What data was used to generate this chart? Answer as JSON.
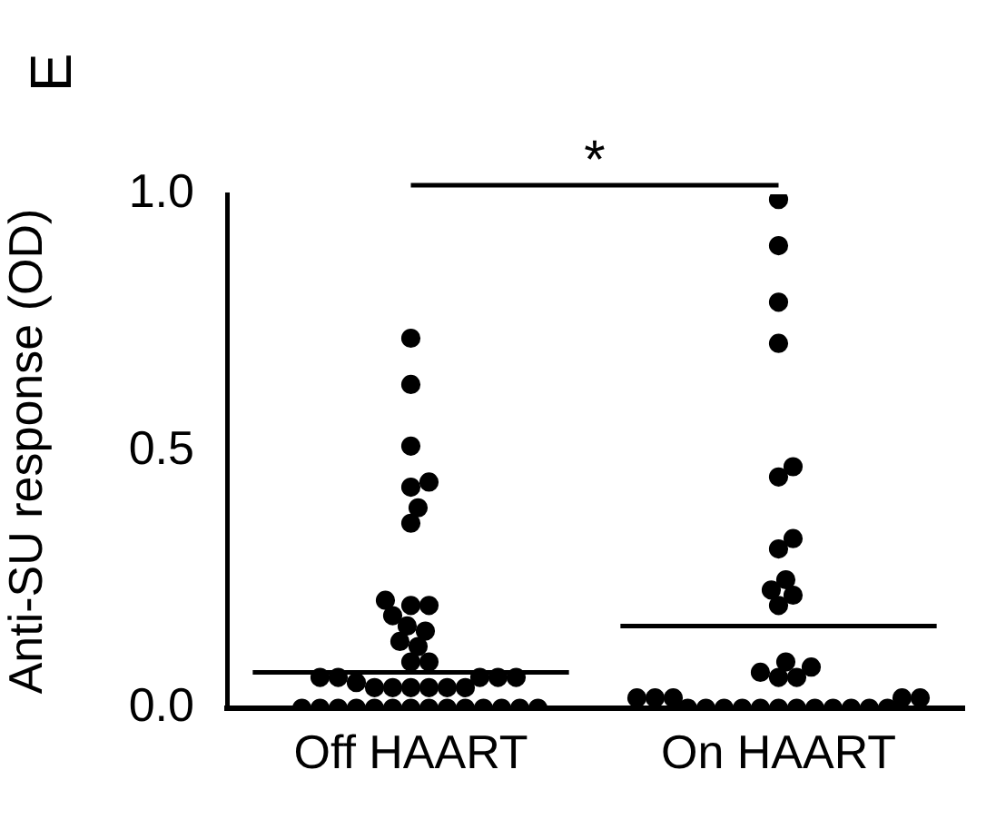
{
  "chart_data": {
    "type": "box",
    "categories": [
      "Off HAART",
      "On HAART"
    ],
    "ylabel": "Anti-SU response (OD)",
    "ylim": [
      0,
      1.0
    ],
    "yticks": [
      {
        "value": 0,
        "label": "0.0"
      },
      {
        "value": 0.5,
        "label": "0.5"
      },
      {
        "value": 1,
        "label": "1.0"
      }
    ],
    "boxes": [
      {
        "low": 0.07,
        "q1": 0.07,
        "median": 0.07,
        "q3": 0.07,
        "high": 0.07
      },
      {
        "low": 0.16,
        "q1": 0.16,
        "median": 0.16,
        "q3": 0.16,
        "high": 0.16
      }
    ],
    "series": [
      {
        "type": "scatter",
        "color": "#000000",
        "x": [
          "Off HAART",
          "Off HAART",
          "Off HAART",
          "Off HAART",
          "Off HAART",
          "Off HAART",
          "Off HAART",
          "Off HAART",
          "Off HAART",
          "Off HAART",
          "Off HAART",
          "Off HAART",
          "Off HAART",
          "Off HAART",
          "Off HAART",
          "Off HAART",
          "Off HAART",
          "Off HAART",
          "Off HAART",
          "Off HAART",
          "Off HAART",
          "Off HAART",
          "Off HAART",
          "Off HAART",
          "Off HAART",
          "Off HAART",
          "Off HAART",
          "Off HAART",
          "Off HAART",
          "Off HAART",
          "Off HAART",
          "Off HAART",
          "Off HAART",
          "Off HAART",
          "Off HAART",
          "Off HAART",
          "Off HAART",
          "Off HAART",
          "Off HAART",
          "Off HAART",
          "Off HAART",
          "Off HAART",
          "Off HAART"
        ],
        "values": [
          0.72,
          0.63,
          0.51,
          0.44,
          0.43,
          0.39,
          0.36,
          0.21,
          0.2,
          0.2,
          0.18,
          0.16,
          0.15,
          0.13,
          0.12,
          0.09,
          0.09,
          0.06,
          0.06,
          0.06,
          0.06,
          0.06,
          0.05,
          0.04,
          0.04,
          0.04,
          0.04,
          0.04,
          0.04,
          0,
          0,
          0,
          0,
          0,
          0,
          0,
          0,
          0,
          0,
          0,
          0,
          0,
          0
        ]
      },
      {
        "type": "scatter",
        "color": "#000000",
        "x": [
          "On HAART",
          "On HAART",
          "On HAART",
          "On HAART",
          "On HAART",
          "On HAART",
          "On HAART",
          "On HAART",
          "On HAART",
          "On HAART",
          "On HAART",
          "On HAART",
          "On HAART",
          "On HAART",
          "On HAART",
          "On HAART",
          "On HAART",
          "On HAART",
          "On HAART",
          "On HAART",
          "On HAART",
          "On HAART",
          "On HAART",
          "On HAART",
          "On HAART",
          "On HAART",
          "On HAART",
          "On HAART",
          "On HAART",
          "On HAART",
          "On HAART",
          "On HAART",
          "On HAART",
          "On HAART"
        ],
        "values": [
          0.99,
          0.9,
          0.79,
          0.71,
          0.47,
          0.45,
          0.33,
          0.31,
          0.25,
          0.23,
          0.22,
          0.2,
          0.09,
          0.08,
          0.07,
          0.06,
          0.06,
          0.02,
          0.02,
          0.02,
          0.02,
          0.02,
          0,
          0,
          0,
          0,
          0,
          0,
          0,
          0,
          0,
          0,
          0,
          0
        ]
      }
    ],
    "annotations": [
      "E",
      "*"
    ],
    "marker": "circle",
    "grid": false,
    "legend": false
  }
}
